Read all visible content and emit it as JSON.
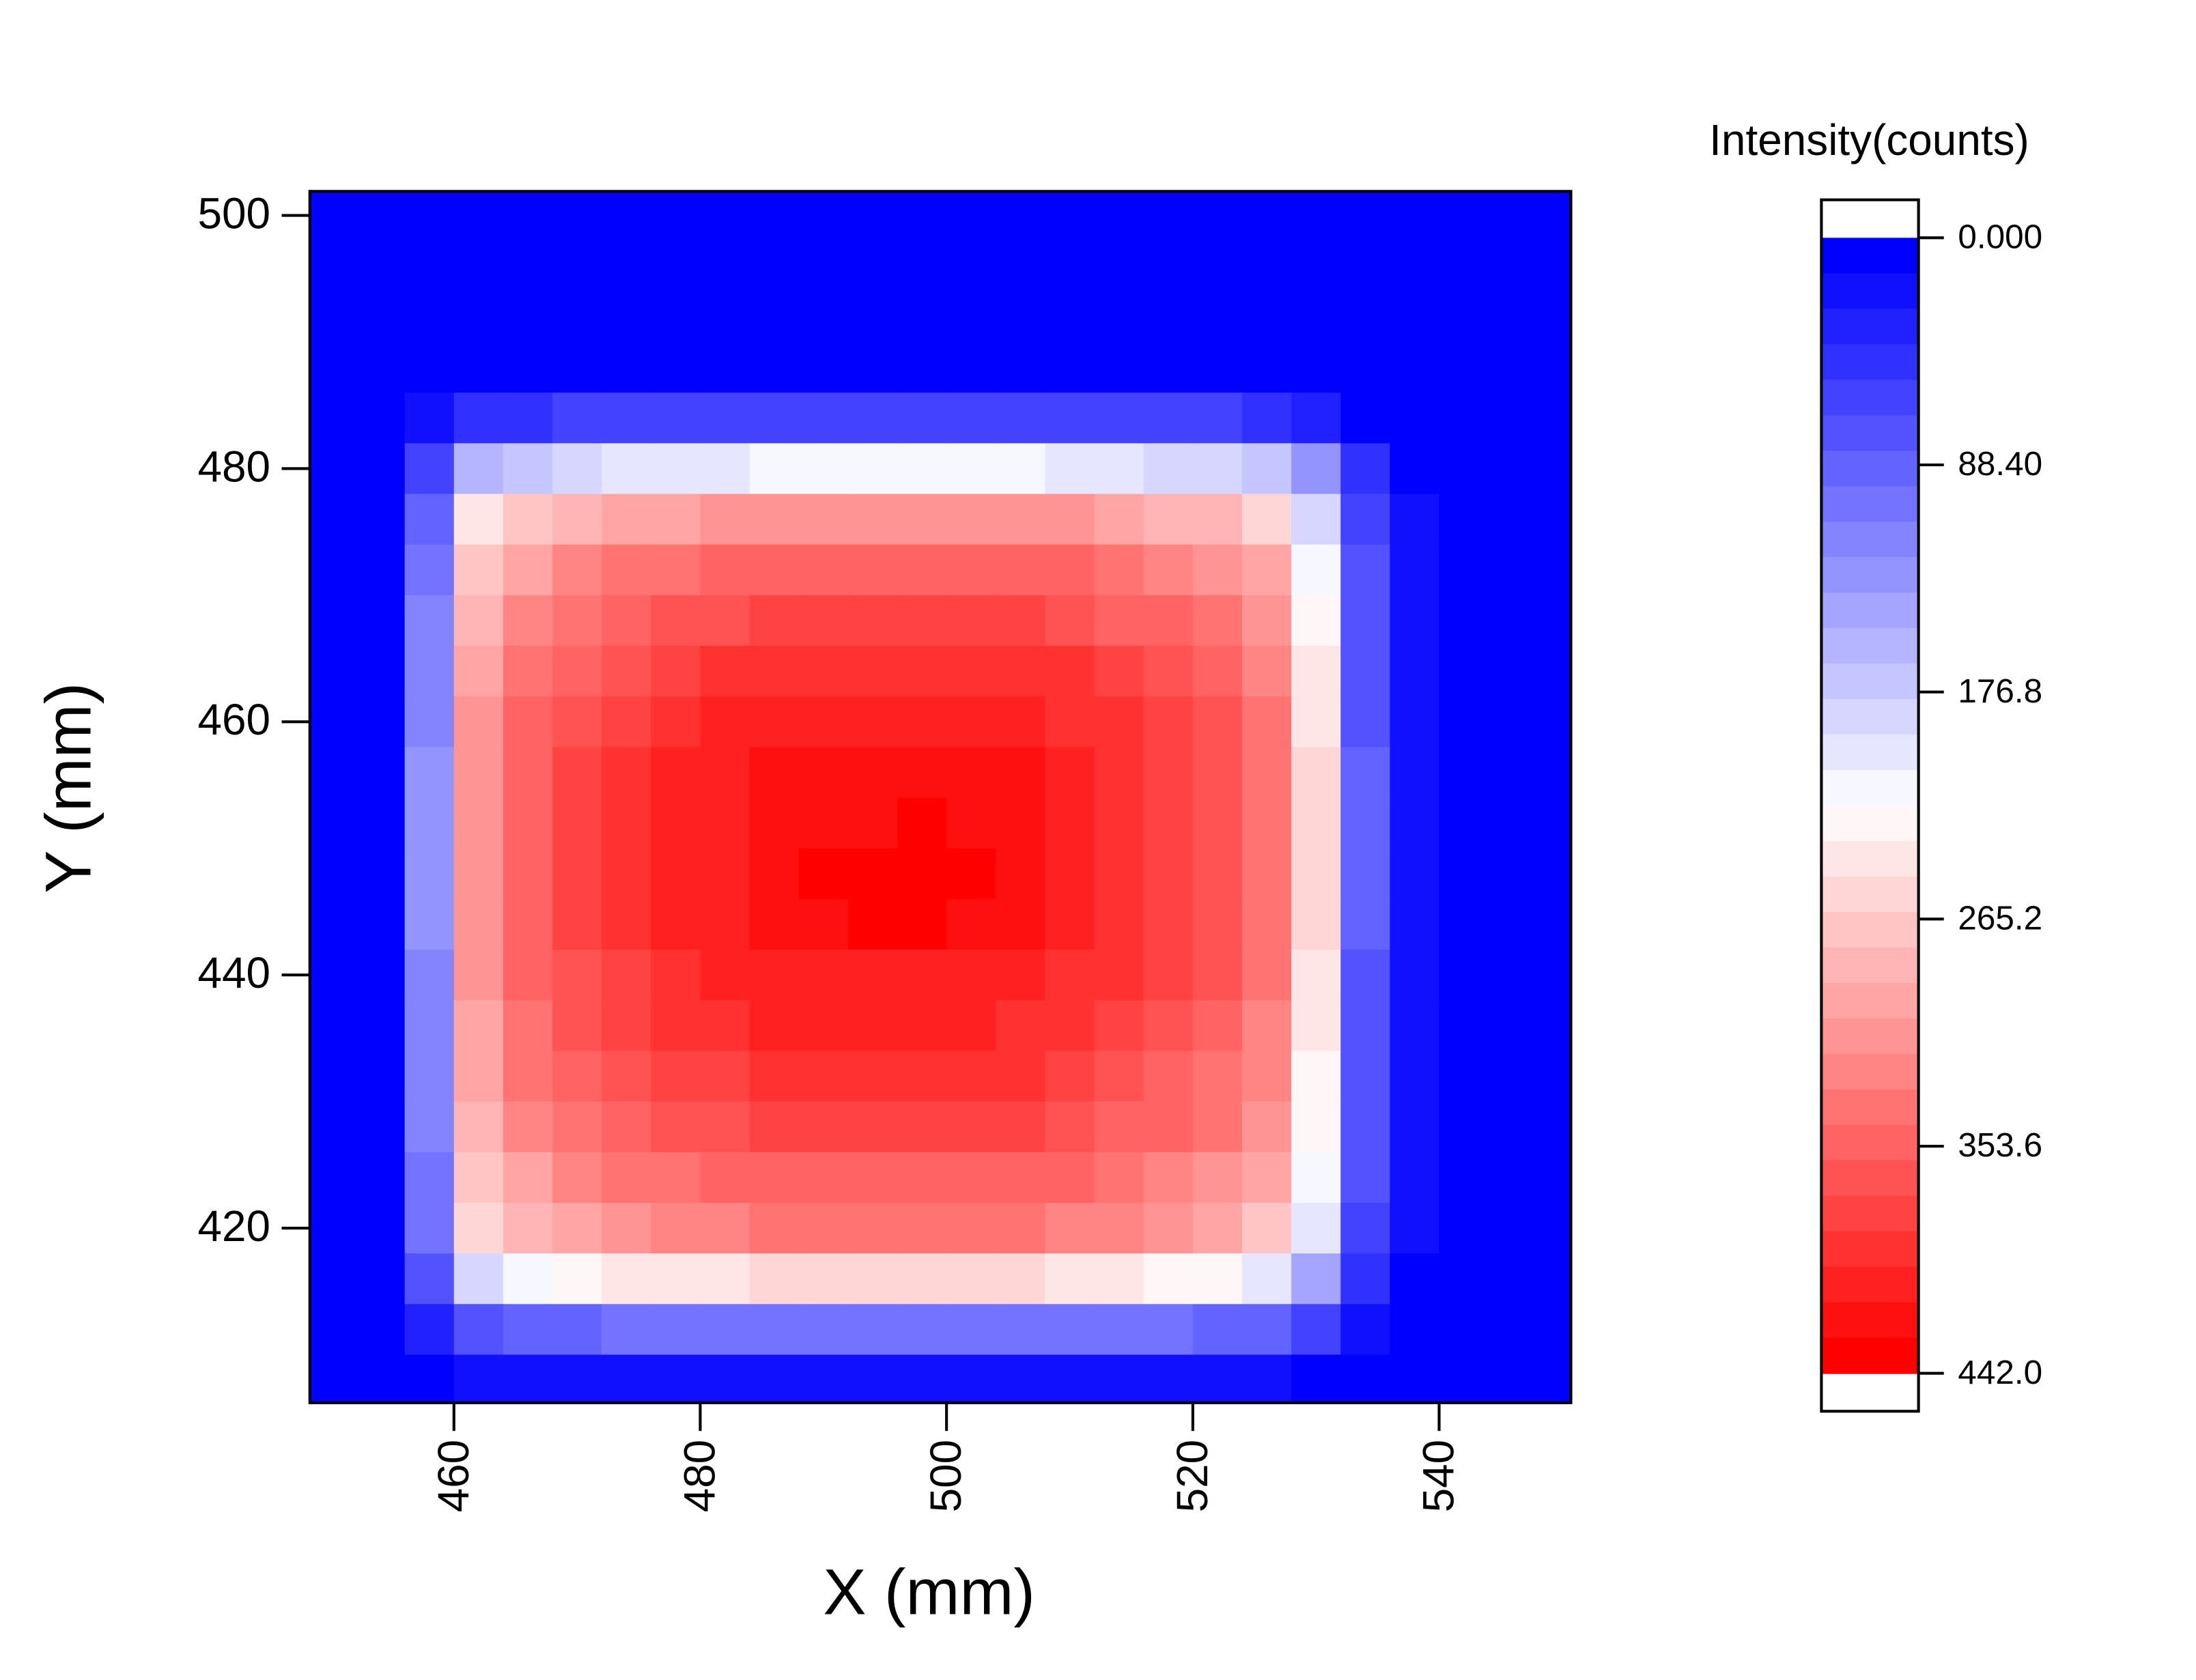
{
  "chart_data": {
    "type": "heatmap",
    "x_label": "X (mm)",
    "y_label": "Y (mm)",
    "colorbar_label": "Intensity(counts)",
    "x": [
      450,
      454,
      458,
      462,
      466,
      470,
      474,
      478,
      482,
      486,
      490,
      494,
      498,
      502,
      506,
      510,
      514,
      518,
      522,
      526,
      530,
      534,
      538,
      542,
      546,
      550
    ],
    "y": [
      500,
      496,
      492,
      488,
      484,
      480,
      476,
      472,
      468,
      464,
      460,
      456,
      452,
      448,
      444,
      440,
      436,
      432,
      428,
      424,
      420,
      416,
      412,
      408
    ],
    "z": [
      [
        0,
        0,
        0,
        0,
        0,
        0,
        0,
        0,
        0,
        0,
        0,
        0,
        0,
        0,
        0,
        0,
        0,
        0,
        0,
        0,
        0,
        0,
        0,
        0,
        0,
        0
      ],
      [
        0,
        0,
        0,
        0,
        0,
        0,
        0,
        0,
        0,
        0,
        0,
        0,
        0,
        0,
        0,
        0,
        0,
        0,
        0,
        0,
        0,
        0,
        0,
        0,
        0,
        0
      ],
      [
        0,
        0,
        0,
        0,
        0,
        0,
        0,
        0,
        0,
        0,
        0,
        0,
        0,
        0,
        0,
        0,
        0,
        0,
        0,
        0,
        0,
        0,
        0,
        0,
        0,
        0
      ],
      [
        0,
        0,
        3,
        6,
        7,
        8,
        8,
        8,
        8,
        8,
        8,
        8,
        8,
        8,
        8,
        8,
        8,
        8,
        7,
        7,
        5,
        2,
        0,
        0,
        0,
        0
      ],
      [
        0,
        0,
        19,
        47,
        54,
        57,
        59,
        60,
        62,
        63,
        63,
        63,
        63,
        63,
        62,
        61,
        60,
        58,
        56,
        52,
        38,
        13,
        3,
        0,
        0,
        0
      ],
      [
        0,
        0,
        63,
        158,
        179,
        189,
        196,
        202,
        206,
        210,
        210,
        210,
        210,
        210,
        208,
        204,
        200,
        193,
        185,
        172,
        126,
        42,
        11,
        0,
        0,
        0
      ],
      [
        0,
        0,
        95,
        236,
        268,
        284,
        293,
        302,
        309,
        315,
        315,
        315,
        315,
        315,
        312,
        305,
        299,
        290,
        278,
        258,
        189,
        63,
        16,
        0,
        0,
        0
      ],
      [
        0,
        0,
        107,
        268,
        303,
        321,
        332,
        343,
        350,
        357,
        357,
        357,
        357,
        357,
        354,
        346,
        339,
        328,
        315,
        292,
        214,
        71,
        18,
        0,
        0,
        0
      ],
      [
        0,
        0,
        113,
        284,
        321,
        340,
        352,
        363,
        371,
        378,
        378,
        378,
        378,
        378,
        374,
        366,
        359,
        347,
        333,
        310,
        227,
        76,
        19,
        0,
        0,
        0
      ],
      [
        0,
        0,
        120,
        299,
        339,
        359,
        371,
        383,
        391,
        399,
        399,
        399,
        399,
        399,
        395,
        387,
        379,
        367,
        352,
        327,
        239,
        80,
        20,
        0,
        0,
        0
      ],
      [
        0,
        0,
        123,
        309,
        350,
        370,
        383,
        395,
        404,
        412,
        412,
        412,
        412,
        412,
        408,
        399,
        391,
        378,
        363,
        337,
        247,
        82,
        21,
        0,
        0,
        0
      ],
      [
        0,
        0,
        126,
        315,
        357,
        378,
        391,
        403,
        412,
        420,
        420,
        420,
        420,
        420,
        416,
        407,
        399,
        386,
        370,
        344,
        252,
        84,
        21,
        0,
        0,
        0
      ],
      [
        0,
        0,
        126,
        315,
        357,
        378,
        391,
        403,
        412,
        420,
        425,
        428,
        430,
        428,
        416,
        407,
        399,
        386,
        370,
        344,
        252,
        84,
        21,
        0,
        0,
        0
      ],
      [
        0,
        0,
        126,
        315,
        357,
        378,
        391,
        403,
        412,
        424,
        430,
        434,
        436,
        430,
        420,
        407,
        399,
        386,
        370,
        344,
        252,
        84,
        21,
        0,
        0,
        0
      ],
      [
        0,
        0,
        126,
        315,
        357,
        378,
        391,
        403,
        412,
        420,
        426,
        430,
        432,
        426,
        416,
        407,
        399,
        386,
        370,
        344,
        252,
        84,
        21,
        0,
        0,
        0
      ],
      [
        0,
        0,
        123,
        309,
        350,
        370,
        383,
        395,
        404,
        412,
        412,
        412,
        412,
        412,
        408,
        399,
        391,
        378,
        363,
        337,
        247,
        82,
        21,
        0,
        0,
        0
      ],
      [
        0,
        0,
        121,
        302,
        343,
        363,
        375,
        387,
        396,
        403,
        403,
        403,
        403,
        403,
        399,
        391,
        383,
        371,
        355,
        330,
        242,
        81,
        20,
        0,
        0,
        0
      ],
      [
        0,
        0,
        117,
        293,
        332,
        352,
        364,
        375,
        383,
        391,
        391,
        391,
        391,
        391,
        387,
        379,
        371,
        359,
        344,
        320,
        234,
        78,
        20,
        0,
        0,
        0
      ],
      [
        0,
        0,
        113,
        284,
        321,
        340,
        352,
        363,
        371,
        378,
        378,
        378,
        378,
        378,
        374,
        366,
        359,
        347,
        333,
        310,
        227,
        76,
        19,
        0,
        0,
        0
      ],
      [
        0,
        0,
        107,
        268,
        303,
        321,
        332,
        343,
        350,
        357,
        357,
        357,
        357,
        357,
        354,
        346,
        339,
        328,
        315,
        292,
        214,
        71,
        18,
        0,
        0,
        0
      ],
      [
        0,
        0,
        101,
        252,
        286,
        302,
        313,
        322,
        330,
        336,
        336,
        336,
        336,
        336,
        333,
        326,
        319,
        309,
        296,
        275,
        202,
        67,
        17,
        0,
        0,
        0
      ],
      [
        0,
        0,
        76,
        189,
        214,
        227,
        235,
        242,
        247,
        252,
        252,
        252,
        252,
        252,
        250,
        244,
        239,
        232,
        222,
        206,
        151,
        50,
        13,
        0,
        0,
        0
      ],
      [
        0,
        0,
        32,
        79,
        89,
        95,
        98,
        101,
        103,
        105,
        105,
        105,
        105,
        105,
        104,
        102,
        100,
        97,
        93,
        86,
        63,
        21,
        5,
        0,
        0,
        0
      ],
      [
        0,
        0,
        6,
        16,
        18,
        19,
        20,
        20,
        21,
        21,
        21,
        21,
        21,
        21,
        21,
        20,
        20,
        19,
        19,
        17,
        13,
        4,
        1,
        0,
        0,
        0
      ]
    ],
    "xlim": [
      448.3,
      550.7
    ],
    "xticks": [
      460,
      480,
      500,
      520,
      540
    ],
    "ylim": [
      406.2,
      501.9
    ],
    "yticks": [
      420,
      440,
      460,
      480,
      500
    ],
    "zlim": [
      0,
      442
    ],
    "zticks": [
      {
        "value": 0,
        "label": "0.000"
      },
      {
        "value": 88.4,
        "label": "88.40"
      },
      {
        "value": 176.8,
        "label": "176.8"
      },
      {
        "value": 265.2,
        "label": "265.2"
      },
      {
        "value": 353.6,
        "label": "353.6"
      },
      {
        "value": 442,
        "label": "442.0"
      }
    ],
    "colormap": [
      "#0000ff",
      "#ffffff",
      "#ff0000"
    ]
  }
}
